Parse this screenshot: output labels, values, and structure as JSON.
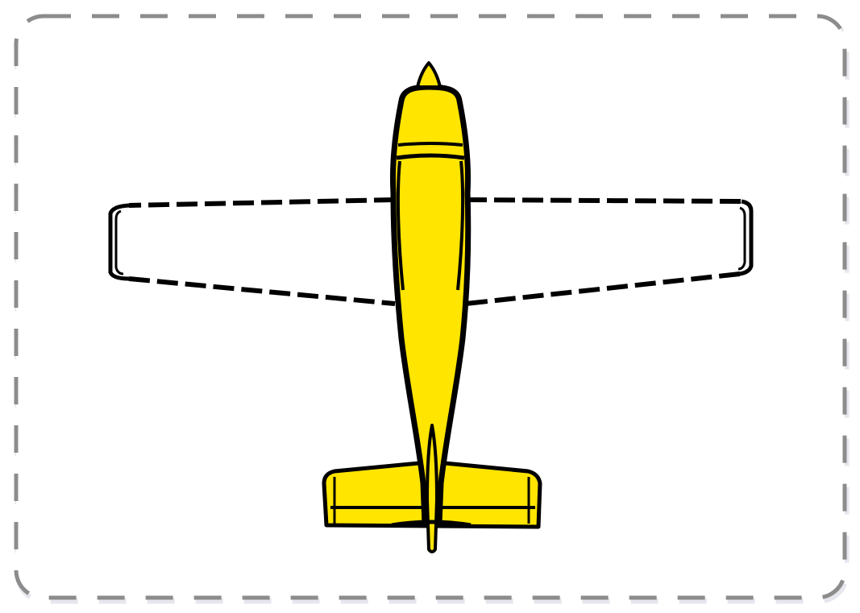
{
  "card": {
    "border_color": "#8c8c8c",
    "border_shadow_color": "#e6e6ee",
    "background_color": "#ffffff"
  },
  "airplane": {
    "view": "top",
    "fill_color": "#ffe500",
    "outline_color": "#000000",
    "wing_fill_color": "#ffffff",
    "wing_outline_style": "dashed"
  }
}
